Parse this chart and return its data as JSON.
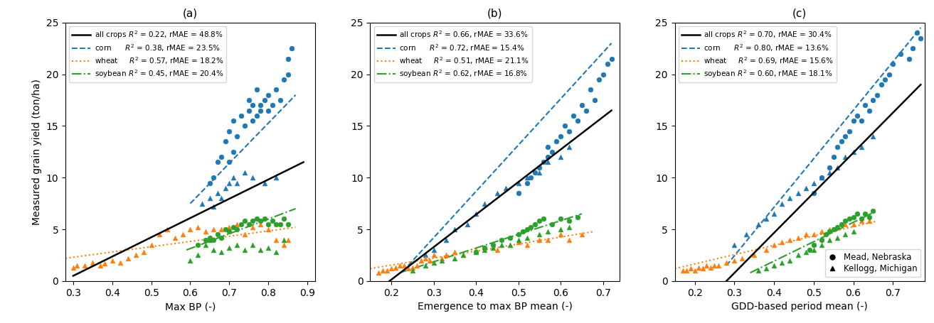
{
  "panels": [
    {
      "label": "(a)",
      "xlabel": "Max BP (-)",
      "xlim": [
        0.28,
        0.92
      ],
      "xticks": [
        0.3,
        0.4,
        0.5,
        0.6,
        0.7,
        0.8,
        0.9
      ],
      "legend_stats": {
        "all_crops": {
          "R2": "0.22",
          "rMAE": "48.8%"
        },
        "corn": {
          "R2": "0.38",
          "rMAE": "23.5%"
        },
        "wheat": {
          "R2": "0.57",
          "rMAE": "18.2%"
        },
        "soybean": {
          "R2": "0.45",
          "rMAE": "20.4%"
        }
      },
      "corn_circles": {
        "x": [
          0.65,
          0.66,
          0.67,
          0.68,
          0.69,
          0.7,
          0.7,
          0.71,
          0.71,
          0.72,
          0.73,
          0.74,
          0.75,
          0.75,
          0.76,
          0.76,
          0.77,
          0.77,
          0.78,
          0.78,
          0.79,
          0.8,
          0.8,
          0.81,
          0.82,
          0.83,
          0.84,
          0.85,
          0.85,
          0.86
        ],
        "y": [
          9.5,
          10.0,
          11.5,
          12.0,
          13.5,
          11.5,
          14.5,
          12.5,
          15.5,
          14.0,
          16.0,
          15.0,
          16.5,
          17.5,
          15.5,
          17.0,
          16.0,
          18.5,
          16.5,
          17.0,
          17.5,
          16.5,
          18.0,
          17.0,
          18.5,
          17.5,
          19.5,
          21.5,
          20.0,
          22.5
        ]
      },
      "corn_triangles": {
        "x": [
          0.63,
          0.65,
          0.66,
          0.67,
          0.68,
          0.69,
          0.7,
          0.71,
          0.72,
          0.74,
          0.76,
          0.79,
          0.82
        ],
        "y": [
          7.5,
          8.0,
          7.2,
          8.5,
          8.0,
          9.0,
          9.5,
          10.0,
          9.5,
          10.5,
          10.0,
          9.5,
          10.0
        ]
      },
      "wheat_triangles": {
        "x": [
          0.3,
          0.31,
          0.33,
          0.35,
          0.37,
          0.38,
          0.4,
          0.42,
          0.44,
          0.46,
          0.48,
          0.5,
          0.52,
          0.54,
          0.56,
          0.58,
          0.6,
          0.62,
          0.64,
          0.66,
          0.68,
          0.7,
          0.72,
          0.74,
          0.76,
          0.78,
          0.8,
          0.82,
          0.84,
          0.85
        ],
        "y": [
          1.3,
          1.5,
          1.5,
          1.8,
          1.5,
          1.7,
          2.0,
          1.8,
          2.2,
          2.5,
          2.8,
          3.5,
          4.5,
          5.0,
          4.2,
          4.5,
          5.0,
          5.2,
          4.8,
          5.0,
          5.0,
          5.2,
          5.5,
          4.5,
          5.2,
          5.5,
          5.0,
          4.0,
          3.5,
          4.0
        ]
      },
      "soybean_circles": {
        "x": [
          0.62,
          0.64,
          0.65,
          0.66,
          0.67,
          0.68,
          0.69,
          0.7,
          0.71,
          0.72,
          0.73,
          0.74,
          0.75,
          0.76,
          0.77,
          0.78,
          0.79,
          0.8,
          0.81,
          0.82,
          0.83,
          0.84,
          0.85
        ],
        "y": [
          3.5,
          4.0,
          4.2,
          4.0,
          4.5,
          4.2,
          5.0,
          4.8,
          5.2,
          5.0,
          5.5,
          5.8,
          5.5,
          5.8,
          6.0,
          5.8,
          6.0,
          5.5,
          5.8,
          5.5,
          5.5,
          6.0,
          5.5
        ]
      },
      "soybean_triangles": {
        "x": [
          0.6,
          0.62,
          0.64,
          0.65,
          0.66,
          0.68,
          0.7,
          0.72,
          0.74,
          0.76,
          0.78,
          0.8,
          0.82,
          0.84
        ],
        "y": [
          2.0,
          2.5,
          3.5,
          4.0,
          3.0,
          2.8,
          3.2,
          3.5,
          3.0,
          3.5,
          3.0,
          3.2,
          2.8,
          4.0
        ]
      },
      "line_all": {
        "x0": 0.3,
        "x1": 0.89,
        "y0": 0.5,
        "y1": 11.5
      },
      "line_corn": {
        "x0": 0.6,
        "x1": 0.87,
        "y0": 7.5,
        "y1": 18.0
      },
      "line_wheat": {
        "x0": 0.28,
        "x1": 0.87,
        "y0": 2.2,
        "y1": 5.2
      },
      "line_soybean": {
        "x0": 0.59,
        "x1": 0.87,
        "y0": 3.0,
        "y1": 7.0
      }
    },
    {
      "label": "(b)",
      "xlabel": "Emergence to max BP mean (-)",
      "xlim": [
        0.15,
        0.74
      ],
      "xticks": [
        0.2,
        0.3,
        0.4,
        0.5,
        0.6,
        0.7
      ],
      "legend_stats": {
        "all_crops": {
          "R2": "0.66",
          "rMAE": "33.6%"
        },
        "corn": {
          "R2": "0.72",
          "rMAE": "15.4%"
        },
        "wheat": {
          "R2": "0.51",
          "rMAE": "21.1%"
        },
        "soybean": {
          "R2": "0.62",
          "rMAE": "16.8%"
        }
      },
      "corn_circles": {
        "x": [
          0.5,
          0.52,
          0.53,
          0.54,
          0.55,
          0.56,
          0.57,
          0.57,
          0.58,
          0.59,
          0.6,
          0.61,
          0.62,
          0.63,
          0.64,
          0.65,
          0.66,
          0.67,
          0.68,
          0.69,
          0.7,
          0.71,
          0.72
        ],
        "y": [
          8.5,
          9.5,
          10.0,
          10.5,
          11.0,
          11.5,
          12.0,
          13.0,
          12.5,
          13.5,
          14.0,
          15.0,
          14.5,
          16.0,
          15.5,
          17.0,
          16.5,
          18.5,
          17.5,
          19.5,
          20.0,
          21.0,
          21.5
        ]
      },
      "corn_triangles": {
        "x": [
          0.28,
          0.3,
          0.33,
          0.35,
          0.38,
          0.4,
          0.42,
          0.45,
          0.47,
          0.5,
          0.52,
          0.55,
          0.57,
          0.6,
          0.62
        ],
        "y": [
          2.5,
          3.0,
          4.0,
          5.0,
          5.5,
          6.5,
          7.5,
          8.5,
          9.0,
          9.5,
          10.0,
          10.5,
          11.5,
          12.0,
          13.0
        ]
      },
      "wheat_triangles": {
        "x": [
          0.17,
          0.18,
          0.19,
          0.2,
          0.21,
          0.22,
          0.23,
          0.24,
          0.25,
          0.26,
          0.27,
          0.28,
          0.29,
          0.3,
          0.32,
          0.33,
          0.35,
          0.37,
          0.4,
          0.42,
          0.45,
          0.48,
          0.5,
          0.52,
          0.55,
          0.57,
          0.6,
          0.62,
          0.65
        ],
        "y": [
          0.8,
          1.0,
          1.0,
          1.2,
          1.3,
          1.5,
          1.5,
          1.2,
          1.3,
          1.5,
          2.0,
          2.2,
          2.0,
          2.5,
          2.2,
          2.5,
          2.8,
          2.5,
          3.0,
          3.2,
          3.0,
          3.5,
          3.8,
          3.5,
          4.0,
          4.0,
          4.5,
          4.0,
          4.5
        ]
      },
      "soybean_circles": {
        "x": [
          0.4,
          0.42,
          0.44,
          0.46,
          0.48,
          0.5,
          0.51,
          0.52,
          0.53,
          0.54,
          0.55,
          0.56,
          0.58,
          0.6,
          0.62,
          0.64
        ],
        "y": [
          2.8,
          3.2,
          3.5,
          4.0,
          4.2,
          4.5,
          4.8,
          5.0,
          5.2,
          5.5,
          5.8,
          6.0,
          5.5,
          6.0,
          5.8,
          6.2
        ]
      },
      "soybean_triangles": {
        "x": [
          0.25,
          0.28,
          0.3,
          0.32,
          0.35,
          0.37,
          0.4,
          0.42,
          0.44,
          0.46,
          0.48,
          0.5,
          0.52,
          0.55,
          0.57,
          0.6,
          0.62
        ],
        "y": [
          1.0,
          1.5,
          1.8,
          2.0,
          2.2,
          2.5,
          2.8,
          3.0,
          3.2,
          3.5,
          3.5,
          4.0,
          4.2,
          4.5,
          4.8,
          5.0,
          5.2
        ]
      },
      "line_all": {
        "x0": 0.18,
        "x1": 0.72,
        "y0": -0.5,
        "y1": 16.5
      },
      "line_corn": {
        "x0": 0.24,
        "x1": 0.72,
        "y0": 1.5,
        "y1": 23.0
      },
      "line_wheat": {
        "x0": 0.15,
        "x1": 0.68,
        "y0": 1.2,
        "y1": 4.8
      },
      "line_soybean": {
        "x0": 0.22,
        "x1": 0.65,
        "y0": 0.8,
        "y1": 6.5
      }
    },
    {
      "label": "(c)",
      "xlabel": "GDD-based period mean (-)",
      "xlim": [
        0.15,
        0.78
      ],
      "xticks": [
        0.2,
        0.3,
        0.4,
        0.5,
        0.6,
        0.7
      ],
      "legend_stats": {
        "all_crops": {
          "R2": "0.70",
          "rMAE": "30.4%"
        },
        "corn": {
          "R2": "0.80",
          "rMAE": "13.6%"
        },
        "wheat": {
          "R2": "0.69",
          "rMAE": "15.6%"
        },
        "soybean": {
          "R2": "0.60",
          "rMAE": "18.1%"
        }
      },
      "corn_circles": {
        "x": [
          0.5,
          0.52,
          0.54,
          0.55,
          0.56,
          0.57,
          0.58,
          0.59,
          0.6,
          0.61,
          0.62,
          0.63,
          0.64,
          0.65,
          0.66,
          0.67,
          0.68,
          0.69,
          0.7,
          0.72,
          0.74,
          0.75,
          0.76,
          0.77
        ],
        "y": [
          8.5,
          10.0,
          11.0,
          12.0,
          13.0,
          13.5,
          14.0,
          14.5,
          15.5,
          16.0,
          15.5,
          17.0,
          16.5,
          17.5,
          18.0,
          19.0,
          19.5,
          20.0,
          21.0,
          22.0,
          21.5,
          22.5,
          24.0,
          23.5
        ]
      },
      "corn_triangles": {
        "x": [
          0.3,
          0.33,
          0.36,
          0.38,
          0.4,
          0.42,
          0.44,
          0.46,
          0.48,
          0.5,
          0.52,
          0.54,
          0.56,
          0.58,
          0.6,
          0.62,
          0.65
        ],
        "y": [
          3.5,
          4.5,
          5.5,
          6.0,
          6.5,
          7.5,
          8.0,
          8.5,
          9.0,
          9.5,
          10.0,
          10.5,
          11.0,
          12.0,
          12.5,
          13.0,
          14.0
        ]
      },
      "wheat_triangles": {
        "x": [
          0.17,
          0.18,
          0.19,
          0.2,
          0.21,
          0.22,
          0.23,
          0.24,
          0.25,
          0.26,
          0.28,
          0.3,
          0.32,
          0.35,
          0.38,
          0.4,
          0.42,
          0.44,
          0.46,
          0.48,
          0.5,
          0.52,
          0.54,
          0.56,
          0.58,
          0.6,
          0.62,
          0.64
        ],
        "y": [
          1.0,
          1.0,
          1.2,
          1.0,
          1.3,
          1.2,
          1.5,
          1.3,
          1.5,
          1.5,
          1.8,
          2.0,
          2.2,
          2.5,
          3.0,
          3.5,
          3.8,
          4.0,
          4.2,
          4.5,
          4.5,
          4.8,
          5.0,
          5.2,
          5.5,
          5.5,
          5.8,
          5.8
        ]
      },
      "soybean_circles": {
        "x": [
          0.49,
          0.5,
          0.52,
          0.53,
          0.54,
          0.55,
          0.56,
          0.57,
          0.58,
          0.59,
          0.6,
          0.61,
          0.62,
          0.63,
          0.64,
          0.65
        ],
        "y": [
          3.0,
          3.5,
          4.0,
          4.5,
          4.8,
          5.0,
          5.2,
          5.5,
          5.8,
          6.0,
          6.2,
          6.5,
          6.0,
          6.5,
          6.2,
          6.8
        ]
      },
      "soybean_triangles": {
        "x": [
          0.36,
          0.38,
          0.4,
          0.42,
          0.44,
          0.46,
          0.48,
          0.5,
          0.52,
          0.54,
          0.56,
          0.58,
          0.6
        ],
        "y": [
          1.0,
          1.2,
          1.5,
          1.8,
          2.0,
          2.5,
          2.8,
          3.0,
          3.5,
          4.0,
          4.2,
          4.5,
          4.8
        ]
      },
      "line_all": {
        "x0": 0.28,
        "x1": 0.77,
        "y0": 0.0,
        "y1": 19.0
      },
      "line_corn": {
        "x0": 0.28,
        "x1": 0.77,
        "y0": 1.5,
        "y1": 24.5
      },
      "line_wheat": {
        "x0": 0.15,
        "x1": 0.66,
        "y0": 1.2,
        "y1": 5.8
      },
      "line_soybean": {
        "x0": 0.34,
        "x1": 0.66,
        "y0": 0.8,
        "y1": 6.8
      }
    }
  ],
  "ylim": [
    0,
    25
  ],
  "yticks": [
    0,
    5,
    10,
    15,
    20,
    25
  ],
  "ylabel": "Measured grain yield (ton/ha)",
  "corn_color": "#1f77b4",
  "wheat_color": "#ff7f0e",
  "soybean_color": "#2ca02c",
  "all_color": "#000000",
  "marker_size": 5,
  "line_width": 1.5
}
